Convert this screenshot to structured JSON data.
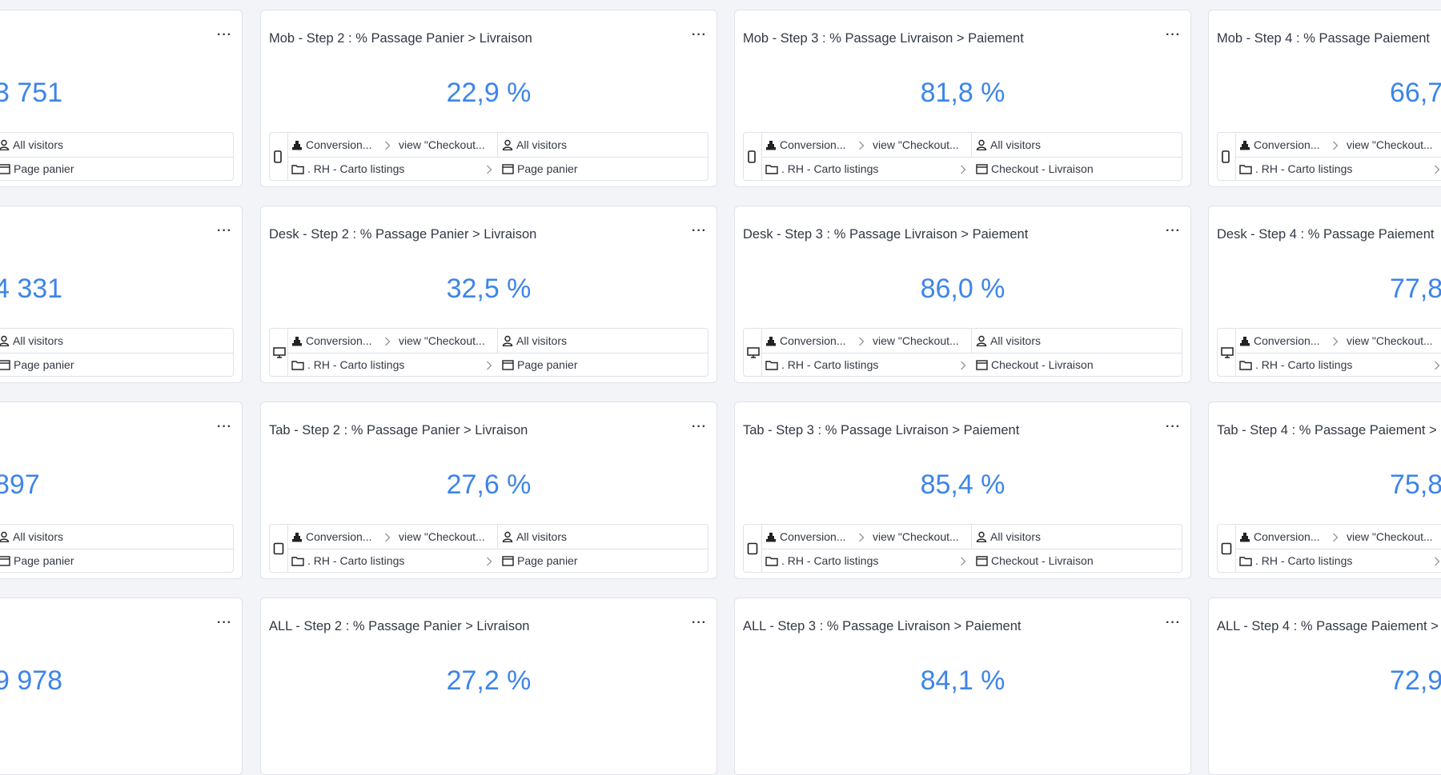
{
  "colors": {
    "accent": "#3d85e8",
    "background": "#f3f4f8"
  },
  "menu_label": "···",
  "rows": [
    {
      "device": "mobile-icon",
      "cards": [
        {
          "title": "",
          "value": "3 751",
          "filters": {
            "segment": "All visitors",
            "page": "Page panier"
          }
        },
        {
          "title": "Mob - Step 2 : % Passage Panier > Livraison",
          "value": "22,9 %",
          "filters": {
            "goal": "Conversion...",
            "event": "view \"Checkout...",
            "segment": "All visitors",
            "folder": ". RH - Carto listings",
            "page": "Page panier"
          }
        },
        {
          "title": "Mob - Step 3 : % Passage Livraison > Paiement",
          "value": "81,8 %",
          "filters": {
            "goal": "Conversion...",
            "event": "view \"Checkout...",
            "segment": "All visitors",
            "folder": ". RH - Carto listings",
            "page": "Checkout - Livraison"
          }
        },
        {
          "title": "Mob - Step 4 : % Passage Paiement",
          "value": "66,7",
          "filters": {
            "goal": "Conversion...",
            "event": "view \"Checkout...",
            "folder": ". RH - Carto listings"
          }
        }
      ]
    },
    {
      "device": "desktop-icon",
      "cards": [
        {
          "title": "",
          "value": "4 331",
          "filters": {
            "segment": "All visitors",
            "page": "Page panier"
          }
        },
        {
          "title": "Desk - Step 2 : % Passage Panier > Livraison",
          "value": "32,5 %",
          "filters": {
            "goal": "Conversion...",
            "event": "view \"Checkout...",
            "segment": "All visitors",
            "folder": ". RH - Carto listings",
            "page": "Page panier"
          }
        },
        {
          "title": "Desk - Step 3 : % Passage Livraison > Paiement",
          "value": "86,0 %",
          "filters": {
            "goal": "Conversion...",
            "event": "view \"Checkout...",
            "segment": "All visitors",
            "folder": ". RH - Carto listings",
            "page": "Checkout - Livraison"
          }
        },
        {
          "title": "Desk - Step 4 : % Passage Paiement",
          "value": "77,8",
          "filters": {
            "goal": "Conversion...",
            "event": "view \"Checkout...",
            "folder": ". RH - Carto listings"
          }
        }
      ]
    },
    {
      "device": "tablet-icon",
      "cards": [
        {
          "title": "",
          "value": "897",
          "filters": {
            "segment": "All visitors",
            "page": "Page panier"
          }
        },
        {
          "title": "Tab - Step 2 : % Passage Panier > Livraison",
          "value": "27,6 %",
          "filters": {
            "goal": "Conversion...",
            "event": "view \"Checkout...",
            "segment": "All visitors",
            "folder": ". RH - Carto listings",
            "page": "Page panier"
          }
        },
        {
          "title": "Tab - Step 3 : % Passage Livraison > Paiement",
          "value": "85,4 %",
          "filters": {
            "goal": "Conversion...",
            "event": "view \"Checkout...",
            "segment": "All visitors",
            "folder": ". RH - Carto listings",
            "page": "Checkout - Livraison"
          }
        },
        {
          "title": "Tab - Step 4 : % Passage Paiement >",
          "value": "75,8",
          "filters": {
            "goal": "Conversion...",
            "event": "view \"Checkout...",
            "folder": ". RH - Carto listings"
          }
        }
      ]
    },
    {
      "device": "all-devices",
      "cards": [
        {
          "title": "",
          "value": "9 978"
        },
        {
          "title": "ALL - Step 2 : % Passage Panier > Livraison",
          "value": "27,2 %"
        },
        {
          "title": "ALL - Step 3 : % Passage Livraison > Paiement",
          "value": "84,1 %"
        },
        {
          "title": "ALL - Step 4 : % Passage Paiement >",
          "value": "72,9"
        }
      ]
    }
  ]
}
